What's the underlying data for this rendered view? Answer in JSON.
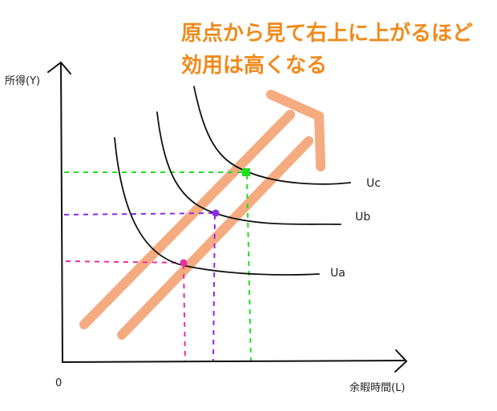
{
  "headline": {
    "line1": "原点から見て右上に上がるほど",
    "line2": "効用は高くなる",
    "color": "#f08a1c"
  },
  "axes": {
    "y_label": "所得(Y)",
    "x_label": "余暇時間(L)",
    "origin_label": "0"
  },
  "curves": {
    "ua_label": "Ua",
    "ub_label": "Ub",
    "uc_label": "Uc"
  },
  "colors": {
    "arrow": "#f5a77a",
    "pink": "#e62fa6",
    "purple": "#8a2be2",
    "green": "#22dd22",
    "curve": "#111111"
  }
}
